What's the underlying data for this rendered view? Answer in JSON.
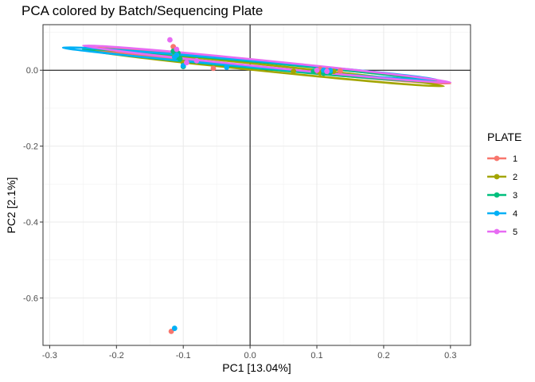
{
  "chart_data": {
    "type": "scatter",
    "title": "PCA colored by Batch/Sequencing Plate",
    "xlabel": "PC1 [13.04%]",
    "ylabel": "PC2 [2.1%]",
    "xlim": [
      -0.31,
      0.33
    ],
    "ylim": [
      -0.725,
      0.12
    ],
    "x_ticks": [
      -0.3,
      -0.2,
      -0.1,
      0.0,
      0.1,
      0.2,
      0.3
    ],
    "x_tick_labels": [
      "-0.3",
      "-0.2",
      "-0.1",
      "0.0",
      "0.1",
      "0.2",
      "0.3"
    ],
    "y_ticks": [
      0.0,
      -0.2,
      -0.4,
      -0.6
    ],
    "y_tick_labels": [
      "0.0",
      "-0.2",
      "-0.4",
      "-0.6"
    ],
    "grid": true,
    "reference_lines": {
      "x": 0,
      "y": 0
    },
    "legend": {
      "title": "PLATE",
      "placement": "right",
      "entries": [
        "1",
        "2",
        "3",
        "4",
        "5"
      ]
    },
    "colors": {
      "1": "#F8766D",
      "2": "#A3A500",
      "3": "#00BF7D",
      "4": "#00B0F6",
      "5": "#E76BF3"
    },
    "series": [
      {
        "name": "1",
        "points": [
          [
            -0.118,
            -0.688
          ],
          [
            -0.115,
            0.062
          ],
          [
            -0.1,
            0.01
          ],
          [
            0.1,
            -0.002
          ],
          [
            0.115,
            0.0
          ],
          [
            0.135,
            -0.002
          ],
          [
            -0.055,
            0.005
          ],
          [
            0.105,
            0.003
          ]
        ],
        "ellipse": [
          [
            -0.25,
            0.06
          ],
          [
            0.3,
            -0.035
          ],
          [
            0.11,
            0.0
          ]
        ]
      },
      {
        "name": "2",
        "points": [
          [
            -0.112,
            0.04
          ],
          [
            -0.1,
            0.02
          ],
          [
            0.065,
            -0.003
          ],
          [
            0.1,
            0.0
          ],
          [
            0.125,
            -0.003
          ],
          [
            0.105,
            -0.007
          ],
          [
            -0.11,
            0.05
          ]
        ],
        "ellipse": [
          [
            -0.25,
            0.055
          ],
          [
            0.29,
            -0.042
          ],
          [
            0.11,
            -0.004
          ]
        ]
      },
      {
        "name": "3",
        "points": [
          [
            -0.115,
            0.05
          ],
          [
            -0.11,
            0.035
          ],
          [
            -0.105,
            0.03
          ],
          [
            -0.1,
            0.01
          ],
          [
            0.12,
            -0.005
          ],
          [
            0.11,
            -0.008
          ],
          [
            -0.108,
            0.045
          ],
          [
            0.095,
            -0.003
          ]
        ],
        "ellipse": [
          [
            -0.25,
            0.055
          ],
          [
            0.28,
            -0.03
          ],
          [
            0.11,
            -0.003
          ]
        ]
      },
      {
        "name": "4",
        "points": [
          [
            -0.113,
            -0.68
          ],
          [
            -0.113,
            0.035
          ],
          [
            -0.11,
            0.04
          ],
          [
            -0.035,
            0.008
          ],
          [
            0.11,
            0.0
          ],
          [
            0.115,
            -0.003
          ],
          [
            -0.1,
            0.012
          ],
          [
            0.12,
            -0.001
          ]
        ],
        "ellipse": [
          [
            -0.28,
            0.06
          ],
          [
            0.28,
            -0.025
          ],
          [
            0.11,
            -0.002
          ]
        ]
      },
      {
        "name": "5",
        "points": [
          [
            -0.12,
            0.08
          ],
          [
            -0.11,
            0.055
          ],
          [
            -0.08,
            0.025
          ],
          [
            0.115,
            -0.003
          ],
          [
            -0.095,
            0.02
          ],
          [
            0.1,
            0.0
          ]
        ],
        "ellipse": [
          [
            -0.25,
            0.065
          ],
          [
            0.3,
            -0.032
          ],
          [
            0.11,
            0.005
          ]
        ]
      }
    ]
  }
}
